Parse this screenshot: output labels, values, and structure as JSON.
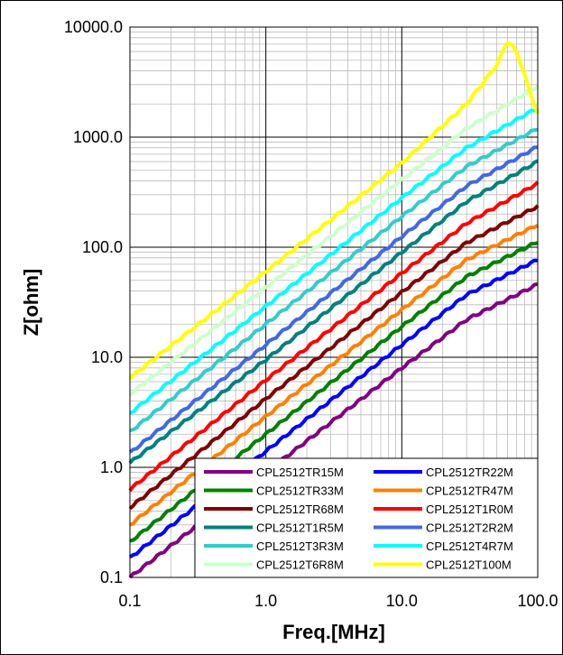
{
  "chart_data": {
    "type": "line",
    "title": "",
    "xlabel": "Freq.[MHz]",
    "ylabel": "Z[ohm]",
    "xscale": "log",
    "yscale": "log",
    "xlim": [
      0.1,
      100
    ],
    "ylim": [
      0.1,
      10000
    ],
    "grid": true,
    "legend_position": "bottom-right",
    "x_tick_labels": [
      "0.1",
      "1.0",
      "10.0",
      "100.0"
    ],
    "y_tick_labels": [
      "0.1",
      "1.0",
      "10.0",
      "100.0",
      "1000.0",
      "10000.0"
    ],
    "series": [
      {
        "name": "CPL2512TR15M",
        "color": "#800080",
        "x": [
          0.1,
          1,
          10,
          30,
          100
        ],
        "y": [
          0.1,
          0.9,
          8,
          22,
          46
        ]
      },
      {
        "name": "CPL2512TR22M",
        "color": "#0000FF",
        "x": [
          0.1,
          1,
          10,
          30,
          100
        ],
        "y": [
          0.15,
          1.4,
          13,
          37,
          77
        ]
      },
      {
        "name": "CPL2512TR33M",
        "color": "#008000",
        "x": [
          0.1,
          1,
          10,
          30,
          100
        ],
        "y": [
          0.21,
          2.0,
          19,
          54,
          112
        ]
      },
      {
        "name": "CPL2512TR47M",
        "color": "#FF8000",
        "x": [
          0.1,
          1,
          10,
          30,
          100
        ],
        "y": [
          0.3,
          2.9,
          27,
          77,
          160
        ]
      },
      {
        "name": "CPL2512TR68M",
        "color": "#800000",
        "x": [
          0.1,
          1,
          10,
          30,
          100
        ],
        "y": [
          0.43,
          4.2,
          39,
          110,
          235
        ]
      },
      {
        "name": "CPL2512T1R0M",
        "color": "#FF0000",
        "x": [
          0.1,
          1,
          10,
          30,
          100
        ],
        "y": [
          0.63,
          6.2,
          58,
          165,
          380
        ]
      },
      {
        "name": "CPL2512T1R5M",
        "color": "#008080",
        "x": [
          0.1,
          1,
          10,
          30,
          100
        ],
        "y": [
          1.1,
          9.5,
          90,
          260,
          600
        ]
      },
      {
        "name": "CPL2512T2R2M",
        "color": "#4169E1",
        "x": [
          0.1,
          1,
          10,
          30,
          100
        ],
        "y": [
          1.35,
          13,
          125,
          360,
          820
        ]
      },
      {
        "name": "CPL2512T3R3M",
        "color": "#33CCCC",
        "x": [
          0.1,
          1,
          10,
          30,
          100
        ],
        "y": [
          2.1,
          20,
          190,
          540,
          1200
        ]
      },
      {
        "name": "CPL2512T4R7M",
        "color": "#00FFFF",
        "x": [
          0.1,
          1,
          10,
          30,
          100
        ],
        "y": [
          3.1,
          29,
          280,
          800,
          1850
        ]
      },
      {
        "name": "CPL2512T6R8M",
        "color": "#CCFFCC",
        "x": [
          0.1,
          1,
          10,
          30,
          100
        ],
        "y": [
          4.6,
          43,
          410,
          1200,
          2900
        ]
      },
      {
        "name": "CPL2512T100M",
        "color": "#FFFF00",
        "x": [
          0.1,
          1,
          10,
          30,
          50,
          60,
          70,
          100
        ],
        "y": [
          6.5,
          60,
          580,
          2000,
          4500,
          7500,
          6000,
          1600
        ]
      }
    ]
  }
}
